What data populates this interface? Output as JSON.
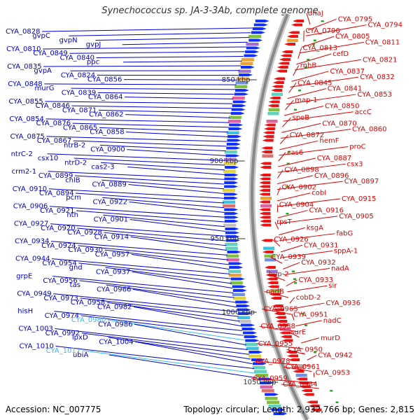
{
  "title": "Synechococcus sp. JA-3-3Ab, complete genome",
  "accession": "Accession: NC_007775",
  "summary": "Topology: circular; Length: 2,932,766 bp; Genes: 2,815",
  "colors": {
    "left_gene": "#0000cc",
    "right_gene": "#dd0000",
    "highlight_gene": "#33bbff",
    "backbone": "#888888"
  },
  "tick_labels": [
    "850 kbp",
    "900 kbp",
    "950 kbp",
    "1000 kbp",
    "1050 kbp"
  ],
  "left_genes": [
    "CYA_0828",
    "gvpC",
    "gvpN",
    "gvpJ",
    "CYA_0810",
    "CYA_0849",
    "CYA_0840",
    "ppc",
    "CYA_0835",
    "gvpA",
    "CYA_0824",
    "CYA_0856",
    "CYA_0848",
    "murG",
    "CYA_0839",
    "CYA_0864",
    "CYA_0855",
    "CYA_0846",
    "CYA_0871",
    "CYA_0862",
    "CYA_0854",
    "CYA_0876",
    "CYA_0865",
    "CYA_0858",
    "CYA_0875",
    "CYA_0867",
    "ntrB-2",
    "CYA_0900",
    "ntrC-2",
    "csx10",
    "ntrD-2",
    "cas2-3",
    "crm2-1",
    "CYA_0899",
    "chlB",
    "CYA_0889",
    "CYA_0910",
    "CYA_0894",
    "pcm",
    "CYA_0922",
    "CYA_0906",
    "CYA_0921",
    "nth",
    "CYA_0901",
    "CYA_0927",
    "CYA_0920",
    "CYA_0928",
    "CYA_0914",
    "CYA_0934",
    "CYA_0924",
    "CYA_0930",
    "CYA_0957",
    "CYA_0944",
    "CYA_0954",
    "gnd",
    "CYA_0937",
    "grpE",
    "CYA_0956",
    "tas",
    "CYA_0966",
    "CYA_0949",
    "CYA_0973",
    "CYA_0958",
    "CYA_0982",
    "hisH",
    "CYA_0974",
    "CYA_0980",
    "CYA_0986",
    "CYA_1003",
    "CYA_0992",
    "lpxD",
    "CYA_1004",
    "CYA_1010",
    "CYA_1017",
    "ubiA"
  ],
  "right_genes": [
    "dnaJ",
    "CYA_0795",
    "CYA_0794",
    "CYA_0796",
    "CYA_0805",
    "CYA_0811",
    "CYA_0813",
    "cefD",
    "CYA_0821",
    "rnhB",
    "CYA_0837",
    "CYA_0832",
    "CYA_0845",
    "CYA_0841",
    "CYA_0853",
    "map-1",
    "CYA_0850",
    "accC",
    "speB",
    "CYA_0870",
    "CYA_0860",
    "CYA_0872",
    "hemF",
    "proC",
    "cas6",
    "CYA_0887",
    "csx3",
    "CYA_0898",
    "CYA_0896",
    "CYA_0897",
    "CYA_0902",
    "cobI",
    "CYA_0915",
    "CYA_0904",
    "CYA_0916",
    "CYA_0905",
    "rpsT",
    "ksgA",
    "fabG",
    "CYA_0926",
    "CYA_0931",
    "sppA-1",
    "CYA_0939",
    "CYA_0932",
    "nadA",
    "hup-2",
    "CYA_0933",
    "sir",
    "nadB",
    "cobD-2",
    "CYA_0936",
    "CYA_0965",
    "CYA_0951",
    "nadC",
    "CYA_0938",
    "surE",
    "murD",
    "CYA_0955",
    "CYA_0950",
    "CYA_0942",
    "CYA_0978",
    "CYA_0961",
    "CYA_0953",
    "CYA_0959",
    "CYA_0984"
  ]
}
